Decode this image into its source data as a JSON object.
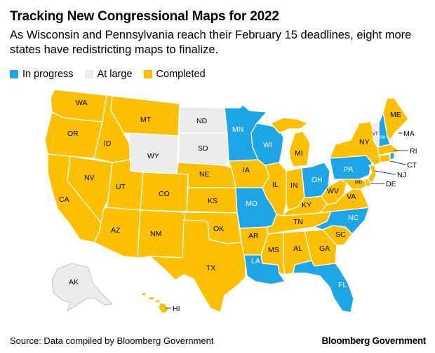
{
  "header": {
    "title": "Tracking New Congressional Maps for 2022",
    "subtitle": "As Wisconsin and Pennsylvania reach their February 15 deadlines, eight more states have redistricting maps to finalize."
  },
  "legend": {
    "items": [
      {
        "label": "In progress",
        "color": "#1ea5e8"
      },
      {
        "label": "At large",
        "color": "#ececec"
      },
      {
        "label": "Completed",
        "color": "#fcc000"
      }
    ]
  },
  "colors": {
    "in_progress": "#1ea5e8",
    "at_large": "#ececec",
    "completed": "#fcc000",
    "border": "#ffffff"
  },
  "states": {
    "WA": "WA",
    "OR": "OR",
    "CA": "CA",
    "ID": "ID",
    "NV": "NV",
    "MT": "MT",
    "WY": "WY",
    "UT": "UT",
    "AZ": "AZ",
    "CO": "CO",
    "NM": "NM",
    "ND": "ND",
    "SD": "SD",
    "NE": "NE",
    "KS": "KS",
    "OK": "OK",
    "TX": "TX",
    "MN": "MN",
    "IA": "IA",
    "MO": "MO",
    "AR": "AR",
    "LA": "LA",
    "WI": "WI",
    "IL": "IL",
    "MI": "MI",
    "IN": "IN",
    "OH": "OH",
    "KY": "KY",
    "TN": "TN",
    "MS": "MS",
    "AL": "AL",
    "GA": "GA",
    "FL": "FL",
    "SC": "SC",
    "NC": "NC",
    "VA": "VA",
    "WV": "WV",
    "PA": "PA",
    "NY": "NY",
    "VT": "VT",
    "NH": "NH",
    "ME": "ME",
    "MA": "MA",
    "RI": "RI",
    "CT": "CT",
    "NJ": "NJ",
    "DE": "DE",
    "MD": "MD",
    "AK": "AK",
    "HI": "HI"
  },
  "footer": {
    "source": "Source: Data compiled by Bloomberg Government",
    "brand": "Bloomberg Government"
  }
}
